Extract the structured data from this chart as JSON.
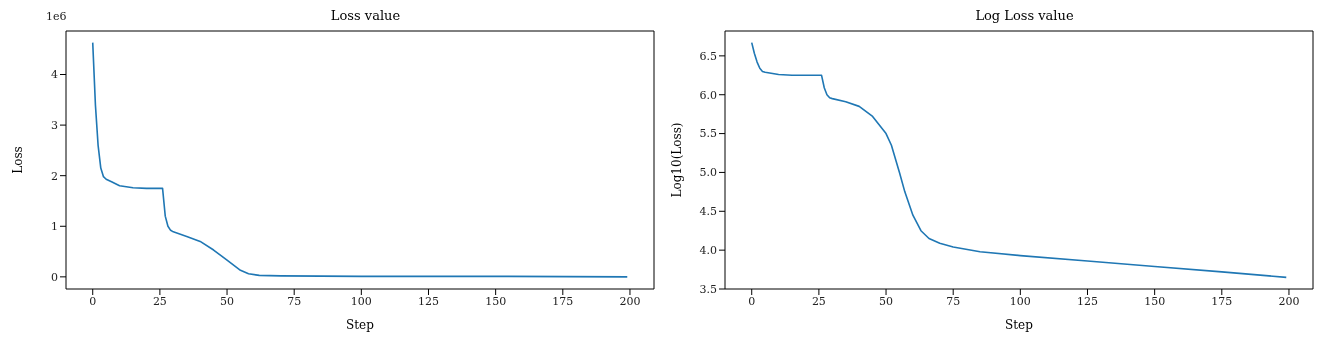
{
  "chart_data": [
    {
      "type": "line",
      "title": "Loss value",
      "xlabel": "Step",
      "ylabel": "Loss",
      "annotations": [
        "1e6"
      ],
      "xlim": [
        -9.95,
        208.95
      ],
      "xticks": [
        0,
        25,
        50,
        75,
        100,
        125,
        150,
        175,
        200
      ],
      "ylim": [
        -0.24,
        4.86
      ],
      "yticks": [
        0,
        1,
        2,
        3,
        4
      ],
      "grid": false,
      "legend": false,
      "x": [
        0,
        1,
        2,
        3,
        4,
        5,
        7,
        10,
        15,
        20,
        26,
        27,
        28,
        29,
        30,
        35,
        40,
        45,
        50,
        55,
        58,
        62,
        70,
        100,
        150,
        199
      ],
      "series": [
        {
          "color": "#1f77b4",
          "values": [
            4.63,
            3.4,
            2.6,
            2.15,
            1.98,
            1.93,
            1.88,
            1.8,
            1.76,
            1.75,
            1.75,
            1.2,
            1.0,
            0.92,
            0.89,
            0.8,
            0.7,
            0.53,
            0.33,
            0.13,
            0.06,
            0.03,
            0.02,
            0.01,
            0.01,
            0.0
          ]
        }
      ]
    },
    {
      "type": "line",
      "title": "Log Loss value",
      "xlabel": "Step",
      "ylabel": "Log10(Loss)",
      "xlim": [
        -9.95,
        208.95
      ],
      "xticks": [
        0,
        25,
        50,
        75,
        100,
        125,
        150,
        175,
        200
      ],
      "ylim": [
        3.5,
        6.82
      ],
      "yticks": [
        {
          "value": 3.5,
          "label": "3.5"
        },
        {
          "value": 4,
          "label": "4.0"
        },
        {
          "value": 4.5,
          "label": "4.5"
        },
        {
          "value": 5,
          "label": "5.0"
        },
        {
          "value": 5.5,
          "label": "5.5"
        },
        {
          "value": 6,
          "label": "6.0"
        },
        {
          "value": 6.5,
          "label": "6.5"
        }
      ],
      "grid": false,
      "legend": false,
      "x": [
        0,
        1,
        2,
        3,
        4,
        5,
        10,
        15,
        20,
        26,
        27,
        28,
        29,
        30,
        35,
        40,
        45,
        50,
        52,
        55,
        57,
        60,
        63,
        66,
        70,
        75,
        85,
        100,
        125,
        150,
        175,
        199
      ],
      "series": [
        {
          "color": "#1f77b4",
          "values": [
            6.67,
            6.53,
            6.42,
            6.34,
            6.3,
            6.29,
            6.26,
            6.25,
            6.25,
            6.25,
            6.09,
            6.0,
            5.96,
            5.95,
            5.91,
            5.85,
            5.72,
            5.5,
            5.35,
            5.0,
            4.75,
            4.45,
            4.25,
            4.15,
            4.09,
            4.04,
            3.98,
            3.93,
            3.86,
            3.79,
            3.72,
            3.65
          ]
        }
      ]
    }
  ]
}
